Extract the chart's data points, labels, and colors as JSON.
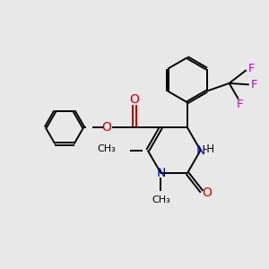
{
  "bg_color": "#e8e8e8",
  "bond_color": "#000000",
  "n_color": "#0000cc",
  "o_color": "#cc0000",
  "f_color": "#cc00cc",
  "lw": 1.4,
  "dbo": 0.055,
  "xlim": [
    0,
    10
  ],
  "ylim": [
    0,
    10
  ],
  "figsize": [
    3.0,
    3.0
  ],
  "dpi": 100
}
